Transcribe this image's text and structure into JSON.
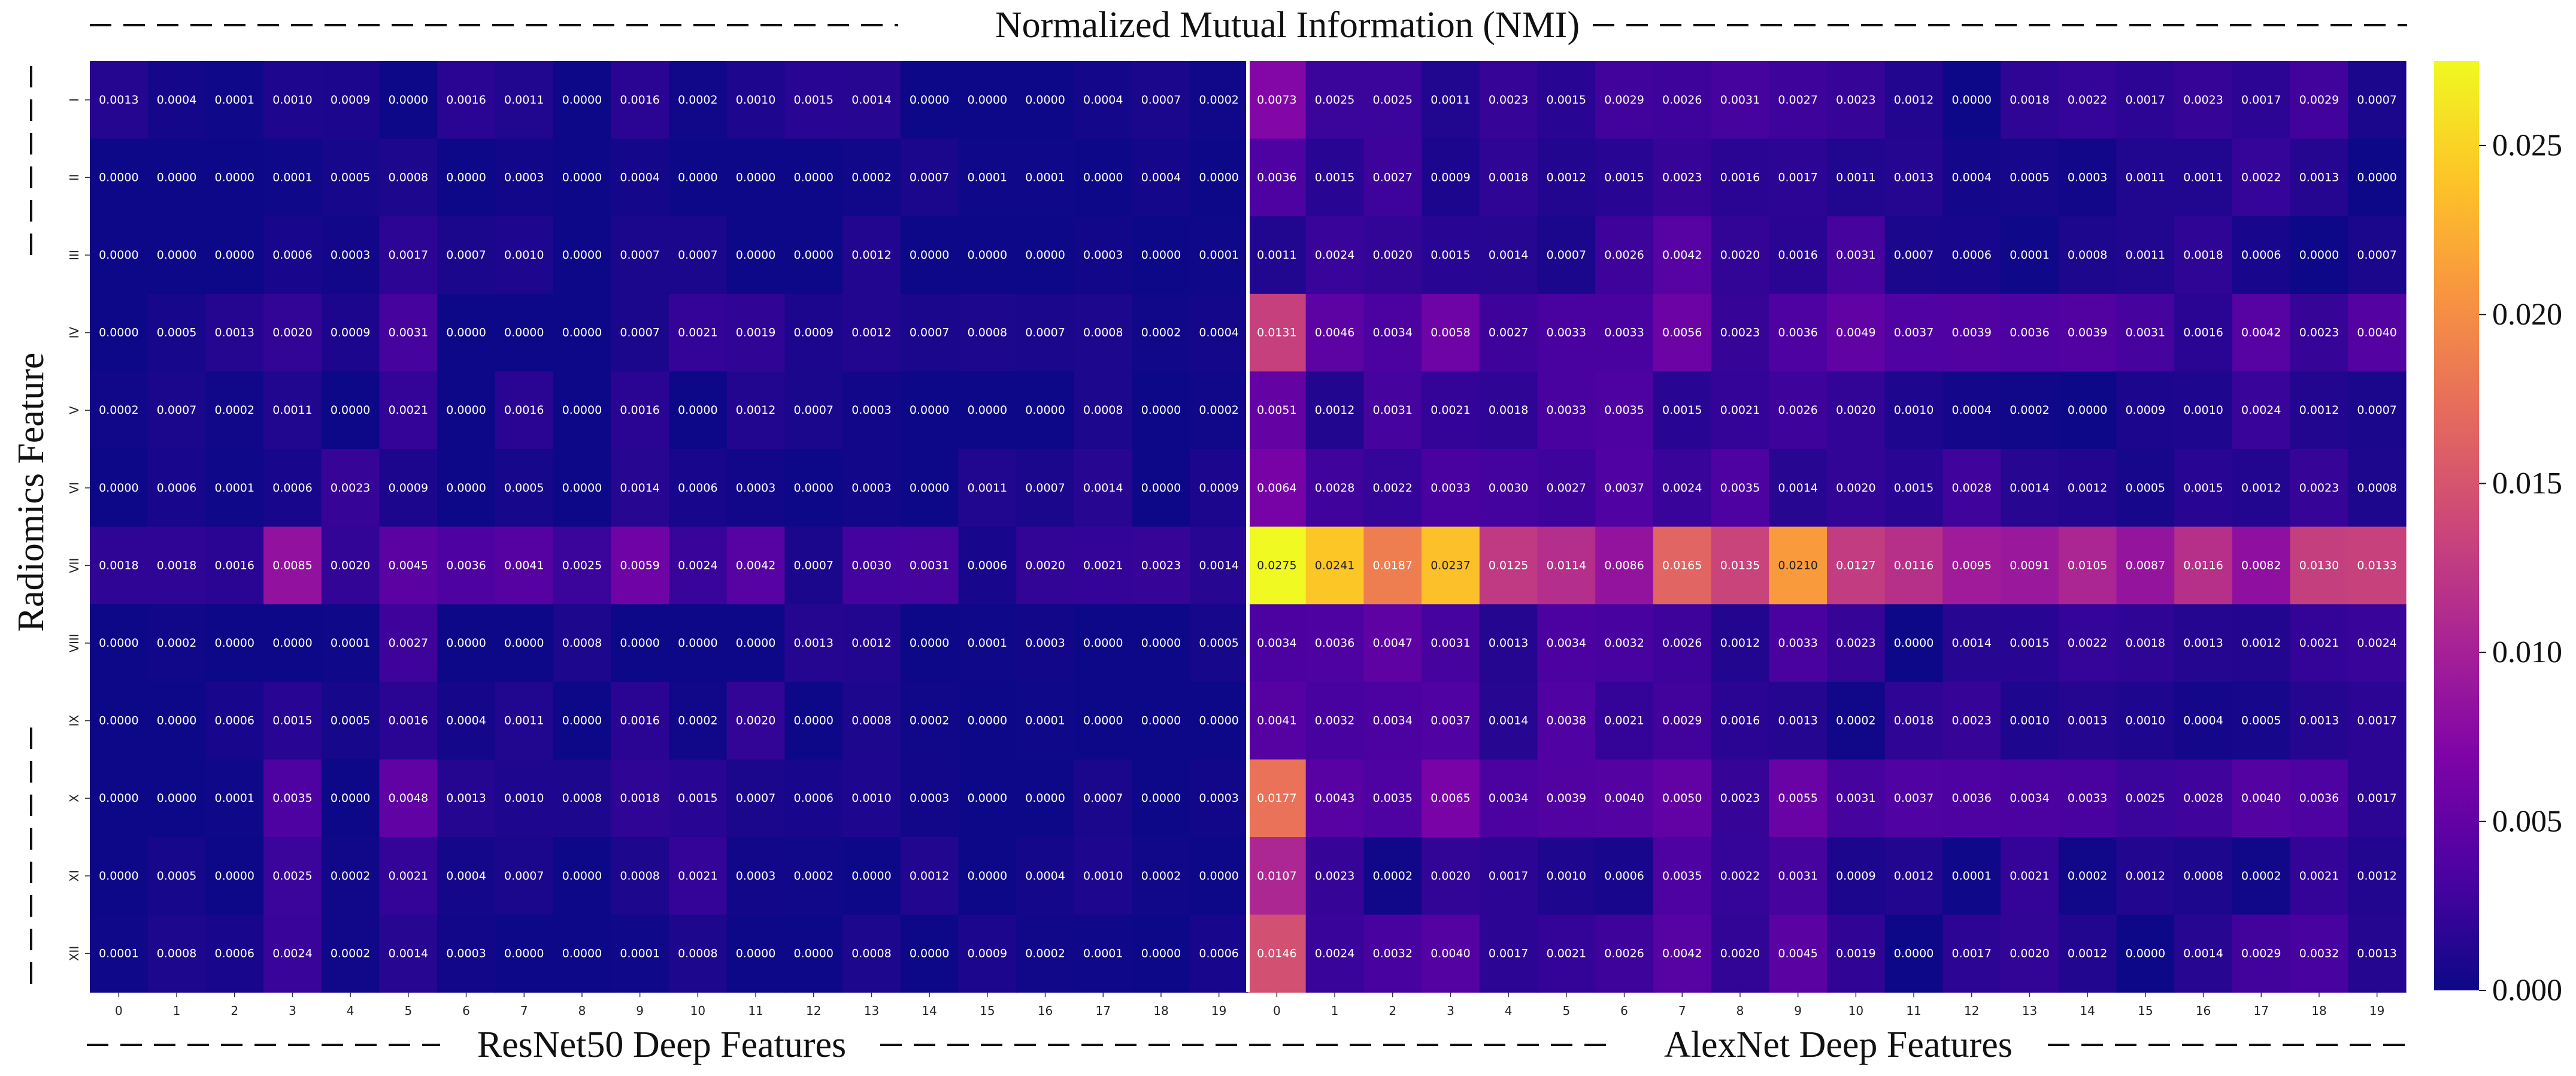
{
  "chart_data": {
    "type": "heatmap",
    "title": "Normalized Mutual Information (NMI)",
    "ylabel": "Radiomics Feature",
    "row_labels": [
      "I",
      "II",
      "III",
      "IV",
      "V",
      "VI",
      "VII",
      "VIII",
      "IX",
      "X",
      "XI",
      "XII"
    ],
    "colorbar": {
      "min": 0.0,
      "max": 0.0275,
      "ticks": [
        "0.000",
        "0.005",
        "0.010",
        "0.015",
        "0.020",
        "0.025"
      ],
      "tick_values": [
        0,
        0.005,
        0.01,
        0.015,
        0.02,
        0.025
      ],
      "colormap": "plasma"
    },
    "panels": [
      {
        "name": "ResNet50 Deep Features",
        "columns": [
          "0",
          "1",
          "2",
          "3",
          "4",
          "5",
          "6",
          "7",
          "8",
          "9",
          "10",
          "11",
          "12",
          "13",
          "14",
          "15",
          "16",
          "17",
          "18",
          "19"
        ],
        "values": [
          [
            "0.0013",
            "0.0004",
            "0.0001",
            "0.0010",
            "0.0009",
            "0.0000",
            "0.0016",
            "0.0011",
            "0.0000",
            "0.0016",
            "0.0002",
            "0.0010",
            "0.0015",
            "0.0014",
            "0.0000",
            "0.0000",
            "0.0000",
            "0.0004",
            "0.0007",
            "0.0002"
          ],
          [
            "0.0000",
            "0.0000",
            "0.0000",
            "0.0001",
            "0.0005",
            "0.0008",
            "0.0000",
            "0.0003",
            "0.0000",
            "0.0004",
            "0.0000",
            "0.0000",
            "0.0000",
            "0.0002",
            "0.0007",
            "0.0001",
            "0.0001",
            "0.0000",
            "0.0004",
            "0.0000"
          ],
          [
            "0.0000",
            "0.0000",
            "0.0000",
            "0.0006",
            "0.0003",
            "0.0017",
            "0.0007",
            "0.0010",
            "0.0000",
            "0.0007",
            "0.0007",
            "0.0000",
            "0.0000",
            "0.0012",
            "0.0000",
            "0.0000",
            "0.0000",
            "0.0003",
            "0.0000",
            "0.0001"
          ],
          [
            "0.0000",
            "0.0005",
            "0.0013",
            "0.0020",
            "0.0009",
            "0.0031",
            "0.0000",
            "0.0000",
            "0.0000",
            "0.0007",
            "0.0021",
            "0.0019",
            "0.0009",
            "0.0012",
            "0.0007",
            "0.0008",
            "0.0007",
            "0.0008",
            "0.0002",
            "0.0004"
          ],
          [
            "0.0002",
            "0.0007",
            "0.0002",
            "0.0011",
            "0.0000",
            "0.0021",
            "0.0000",
            "0.0016",
            "0.0000",
            "0.0016",
            "0.0000",
            "0.0012",
            "0.0007",
            "0.0003",
            "0.0000",
            "0.0000",
            "0.0000",
            "0.0008",
            "0.0000",
            "0.0002"
          ],
          [
            "0.0000",
            "0.0006",
            "0.0001",
            "0.0006",
            "0.0023",
            "0.0009",
            "0.0000",
            "0.0005",
            "0.0000",
            "0.0014",
            "0.0006",
            "0.0003",
            "0.0000",
            "0.0003",
            "0.0000",
            "0.0011",
            "0.0007",
            "0.0014",
            "0.0000",
            "0.0009"
          ],
          [
            "0.0018",
            "0.0018",
            "0.0016",
            "0.0085",
            "0.0020",
            "0.0045",
            "0.0036",
            "0.0041",
            "0.0025",
            "0.0059",
            "0.0024",
            "0.0042",
            "0.0007",
            "0.0030",
            "0.0031",
            "0.0006",
            "0.0020",
            "0.0021",
            "0.0023",
            "0.0014"
          ],
          [
            "0.0000",
            "0.0002",
            "0.0000",
            "0.0000",
            "0.0001",
            "0.0027",
            "0.0000",
            "0.0000",
            "0.0008",
            "0.0000",
            "0.0000",
            "0.0000",
            "0.0013",
            "0.0012",
            "0.0000",
            "0.0001",
            "0.0003",
            "0.0000",
            "0.0000",
            "0.0005"
          ],
          [
            "0.0000",
            "0.0000",
            "0.0006",
            "0.0015",
            "0.0005",
            "0.0016",
            "0.0004",
            "0.0011",
            "0.0000",
            "0.0016",
            "0.0002",
            "0.0020",
            "0.0000",
            "0.0008",
            "0.0002",
            "0.0000",
            "0.0001",
            "0.0000",
            "0.0000",
            "0.0000"
          ],
          [
            "0.0000",
            "0.0000",
            "0.0001",
            "0.0035",
            "0.0000",
            "0.0048",
            "0.0013",
            "0.0010",
            "0.0008",
            "0.0018",
            "0.0015",
            "0.0007",
            "0.0006",
            "0.0010",
            "0.0003",
            "0.0000",
            "0.0000",
            "0.0007",
            "0.0000",
            "0.0003"
          ],
          [
            "0.0000",
            "0.0005",
            "0.0000",
            "0.0025",
            "0.0002",
            "0.0021",
            "0.0004",
            "0.0007",
            "0.0000",
            "0.0008",
            "0.0021",
            "0.0003",
            "0.0002",
            "0.0000",
            "0.0012",
            "0.0000",
            "0.0004",
            "0.0010",
            "0.0002",
            "0.0000"
          ],
          [
            "0.0001",
            "0.0008",
            "0.0006",
            "0.0024",
            "0.0002",
            "0.0014",
            "0.0003",
            "0.0000",
            "0.0000",
            "0.0001",
            "0.0008",
            "0.0000",
            "0.0000",
            "0.0008",
            "0.0000",
            "0.0009",
            "0.0002",
            "0.0001",
            "0.0000",
            "0.0006"
          ]
        ]
      },
      {
        "name": "AlexNet Deep Features",
        "columns": [
          "0",
          "1",
          "2",
          "3",
          "4",
          "5",
          "6",
          "7",
          "8",
          "9",
          "10",
          "11",
          "12",
          "13",
          "14",
          "15",
          "16",
          "17",
          "18",
          "19"
        ],
        "values": [
          [
            "0.0073",
            "0.0025",
            "0.0025",
            "0.0011",
            "0.0023",
            "0.0015",
            "0.0029",
            "0.0026",
            "0.0031",
            "0.0027",
            "0.0023",
            "0.0012",
            "0.0000",
            "0.0018",
            "0.0022",
            "0.0017",
            "0.0023",
            "0.0017",
            "0.0029",
            "0.0007"
          ],
          [
            "0.0036",
            "0.0015",
            "0.0027",
            "0.0009",
            "0.0018",
            "0.0012",
            "0.0015",
            "0.0023",
            "0.0016",
            "0.0017",
            "0.0011",
            "0.0013",
            "0.0004",
            "0.0005",
            "0.0003",
            "0.0011",
            "0.0011",
            "0.0022",
            "0.0013",
            "0.0000"
          ],
          [
            "0.0011",
            "0.0024",
            "0.0020",
            "0.0015",
            "0.0014",
            "0.0007",
            "0.0026",
            "0.0042",
            "0.0020",
            "0.0016",
            "0.0031",
            "0.0007",
            "0.0006",
            "0.0001",
            "0.0008",
            "0.0011",
            "0.0018",
            "0.0006",
            "0.0000",
            "0.0007"
          ],
          [
            "0.0131",
            "0.0046",
            "0.0034",
            "0.0058",
            "0.0027",
            "0.0033",
            "0.0033",
            "0.0056",
            "0.0023",
            "0.0036",
            "0.0049",
            "0.0037",
            "0.0039",
            "0.0036",
            "0.0039",
            "0.0031",
            "0.0016",
            "0.0042",
            "0.0023",
            "0.0040"
          ],
          [
            "0.0051",
            "0.0012",
            "0.0031",
            "0.0021",
            "0.0018",
            "0.0033",
            "0.0035",
            "0.0015",
            "0.0021",
            "0.0026",
            "0.0020",
            "0.0010",
            "0.0004",
            "0.0002",
            "0.0000",
            "0.0009",
            "0.0010",
            "0.0024",
            "0.0012",
            "0.0007"
          ],
          [
            "0.0064",
            "0.0028",
            "0.0022",
            "0.0033",
            "0.0030",
            "0.0027",
            "0.0037",
            "0.0024",
            "0.0035",
            "0.0014",
            "0.0020",
            "0.0015",
            "0.0028",
            "0.0014",
            "0.0012",
            "0.0005",
            "0.0015",
            "0.0012",
            "0.0023",
            "0.0008"
          ],
          [
            "0.0275",
            "0.0241",
            "0.0187",
            "0.0237",
            "0.0125",
            "0.0114",
            "0.0086",
            "0.0165",
            "0.0135",
            "0.0210",
            "0.0127",
            "0.0116",
            "0.0095",
            "0.0091",
            "0.0105",
            "0.0087",
            "0.0116",
            "0.0082",
            "0.0130",
            "0.0133"
          ],
          [
            "0.0034",
            "0.0036",
            "0.0047",
            "0.0031",
            "0.0013",
            "0.0034",
            "0.0032",
            "0.0026",
            "0.0012",
            "0.0033",
            "0.0023",
            "0.0000",
            "0.0014",
            "0.0015",
            "0.0022",
            "0.0018",
            "0.0013",
            "0.0012",
            "0.0021",
            "0.0024"
          ],
          [
            "0.0041",
            "0.0032",
            "0.0034",
            "0.0037",
            "0.0014",
            "0.0038",
            "0.0021",
            "0.0029",
            "0.0016",
            "0.0013",
            "0.0002",
            "0.0018",
            "0.0023",
            "0.0010",
            "0.0013",
            "0.0010",
            "0.0004",
            "0.0005",
            "0.0013",
            "0.0017"
          ],
          [
            "0.0177",
            "0.0043",
            "0.0035",
            "0.0065",
            "0.0034",
            "0.0039",
            "0.0040",
            "0.0050",
            "0.0023",
            "0.0055",
            "0.0031",
            "0.0037",
            "0.0036",
            "0.0034",
            "0.0033",
            "0.0025",
            "0.0028",
            "0.0040",
            "0.0036",
            "0.0017"
          ],
          [
            "0.0107",
            "0.0023",
            "0.0002",
            "0.0020",
            "0.0017",
            "0.0010",
            "0.0006",
            "0.0035",
            "0.0022",
            "0.0031",
            "0.0009",
            "0.0012",
            "0.0001",
            "0.0021",
            "0.0002",
            "0.0012",
            "0.0008",
            "0.0002",
            "0.0021",
            "0.0012"
          ],
          [
            "0.0146",
            "0.0024",
            "0.0032",
            "0.0040",
            "0.0017",
            "0.0021",
            "0.0026",
            "0.0042",
            "0.0020",
            "0.0045",
            "0.0019",
            "0.0000",
            "0.0017",
            "0.0020",
            "0.0012",
            "0.0000",
            "0.0014",
            "0.0029",
            "0.0032",
            "0.0013"
          ]
        ]
      }
    ]
  }
}
